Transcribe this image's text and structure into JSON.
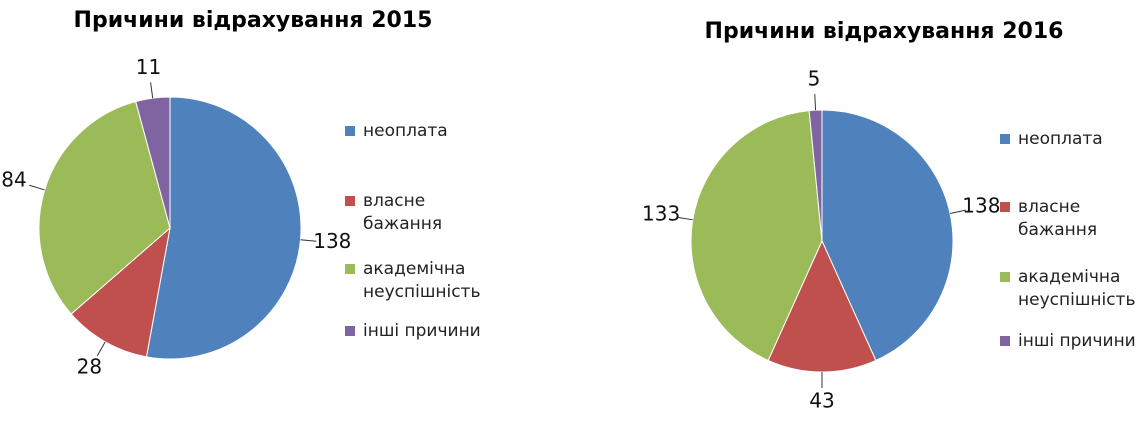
{
  "chart_data": [
    {
      "type": "pie",
      "title": "Причини відрахування 2015",
      "categories": [
        "неоплата",
        "власне бажання",
        "академічна неуспішність",
        "інші причини"
      ],
      "values": [
        138,
        28,
        84,
        11
      ],
      "colors": [
        "#4f81bd",
        "#c0504d",
        "#9bbb59",
        "#8064a2"
      ]
    },
    {
      "type": "pie",
      "title": "Причини відрахування 2016",
      "categories": [
        "неоплата",
        "власне бажання",
        "академічна неуспішність",
        "інші причини"
      ],
      "values": [
        138,
        43,
        133,
        5
      ],
      "colors": [
        "#4f81bd",
        "#c0504d",
        "#9bbb59",
        "#8064a2"
      ]
    }
  ]
}
